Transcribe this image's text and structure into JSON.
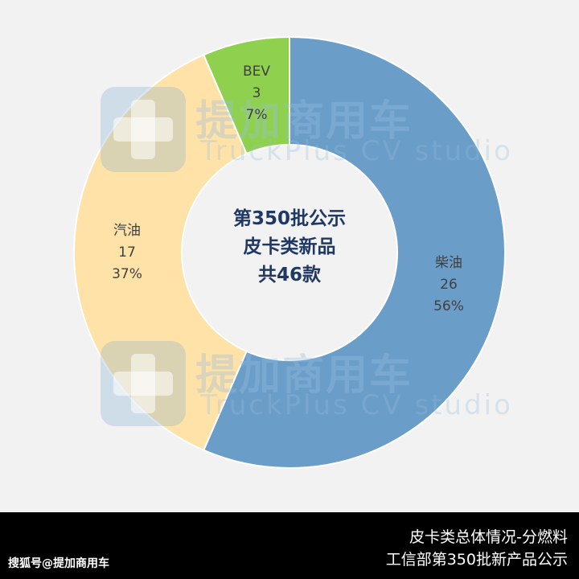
{
  "chart_data": {
    "type": "pie",
    "variant": "donut",
    "categories": [
      "柴油",
      "汽油",
      "BEV"
    ],
    "values": [
      26,
      17,
      3
    ],
    "percents": [
      "56%",
      "37%",
      "7%"
    ],
    "colors": [
      "#6b9dc9",
      "#ffe2a8",
      "#8fd14f"
    ],
    "center_text": [
      "第350批公示",
      "皮卡类新品",
      "共46款"
    ]
  },
  "watermark": {
    "text_cn": "提加商用车",
    "text_en": "TruckPlus CV studio"
  },
  "footer": {
    "line1": "皮卡类总体情况-分燃料",
    "line2": "工信部第350批新产品公示",
    "source": "搜狐号@提加商用车"
  }
}
